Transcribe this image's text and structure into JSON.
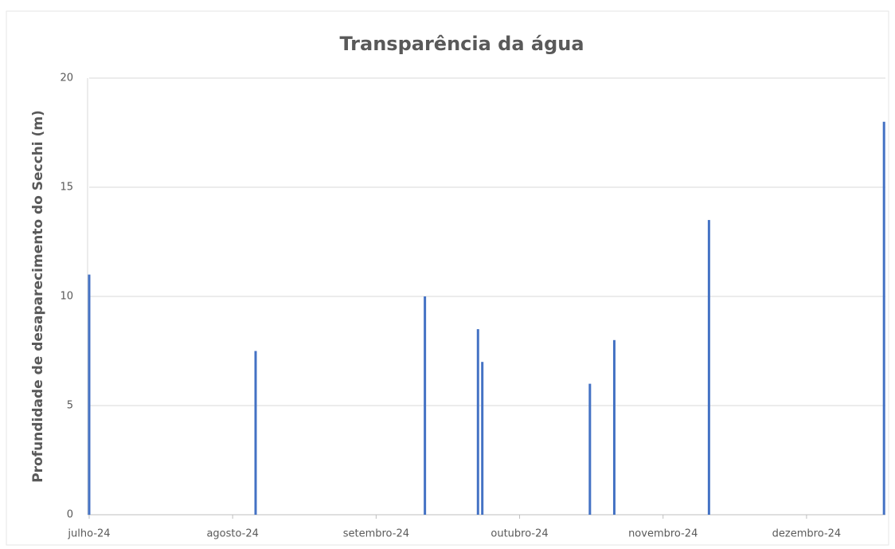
{
  "chart_data": {
    "type": "bar",
    "title": "Transparência da água",
    "y_label": "Profundidade de desaparecimento do Secchi (m)",
    "x": [
      7.0,
      8.16,
      9.34,
      9.71,
      9.74,
      10.49,
      10.66,
      11.32,
      12.54
    ],
    "values": [
      11,
      7.5,
      10,
      8.5,
      7,
      6,
      8,
      13.5,
      18
    ],
    "color": "#4472c4",
    "xlim": [
      7,
      12.55
    ],
    "xticks": [
      {
        "value": 7,
        "label": "julho-24"
      },
      {
        "value": 8,
        "label": "agosto-24"
      },
      {
        "value": 9,
        "label": "setembro-24"
      },
      {
        "value": 10,
        "label": "outubro-24"
      },
      {
        "value": 11,
        "label": "novembro-24"
      },
      {
        "value": 12,
        "label": "dezembro-24"
      }
    ],
    "ylim": [
      0,
      20
    ],
    "yticks": [
      0,
      5,
      10,
      15,
      20
    ],
    "grid": true
  }
}
